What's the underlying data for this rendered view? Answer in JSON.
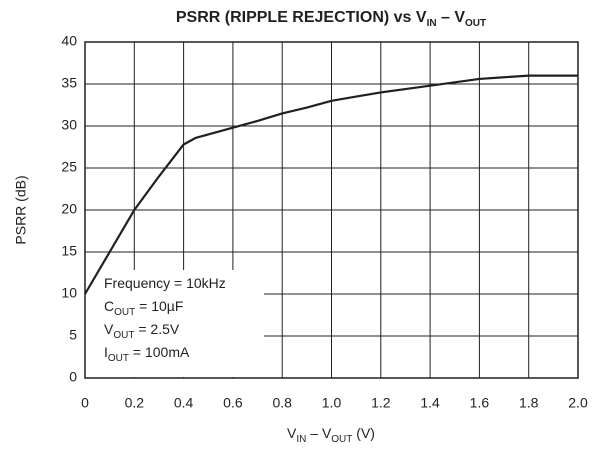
{
  "chart_data": {
    "type": "line",
    "title": [
      "PSRR (RIPPLE REJECTION) vs V",
      "IN",
      " – V",
      "OUT"
    ],
    "x_label": [
      "V",
      "IN",
      " – V",
      "OUT",
      " (V)"
    ],
    "y_label": "PSRR (dB)",
    "annotations": [
      [
        "Frequency = 10kHz"
      ],
      [
        "C",
        "OUT",
        " = 10µF"
      ],
      [
        "V",
        "OUT",
        " = 2.5V"
      ],
      [
        "I",
        "OUT",
        " = 100mA"
      ]
    ],
    "x": [
      0,
      0.1,
      0.2,
      0.3,
      0.4,
      0.45,
      0.5,
      0.6,
      0.7,
      0.8,
      0.9,
      1.0,
      1.1,
      1.2,
      1.3,
      1.4,
      1.5,
      1.6,
      1.7,
      1.8,
      1.9,
      2.0
    ],
    "series": [
      {
        "color": "#231f20",
        "values": [
          10,
          15,
          20,
          24,
          27.8,
          28.6,
          29,
          29.8,
          30.6,
          31.5,
          32.2,
          33,
          33.5,
          34,
          34.4,
          34.8,
          35.2,
          35.6,
          35.8,
          36,
          36,
          36
        ]
      }
    ],
    "xlim": [
      0,
      2
    ],
    "xticks": [
      0,
      0.2,
      0.4,
      0.6,
      0.8,
      {
        "value": 1,
        "label": "1.0"
      },
      1.2,
      1.4,
      1.6,
      1.8,
      {
        "value": 2,
        "label": "2.0"
      }
    ],
    "ylim": [
      0,
      40
    ],
    "yticks": [
      0,
      5,
      10,
      15,
      20,
      25,
      30,
      35,
      40
    ],
    "grid": true
  }
}
